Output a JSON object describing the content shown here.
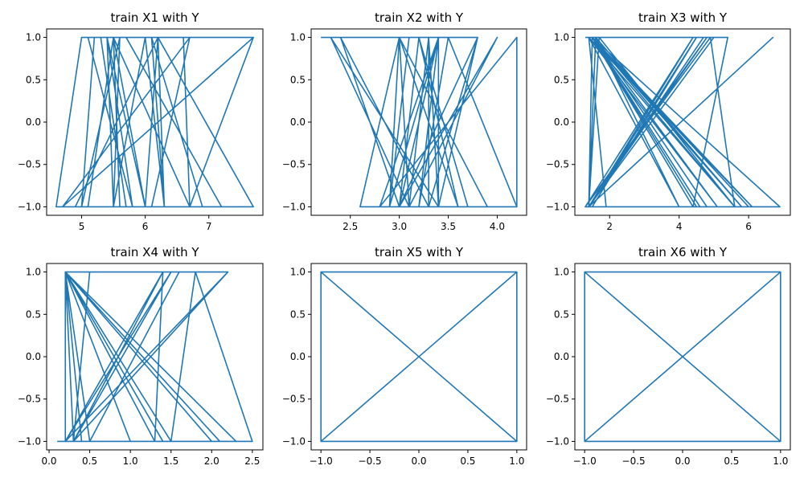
{
  "figure": {
    "background": "#ffffff",
    "line_color": "#1f77b4"
  },
  "chart_data": [
    {
      "type": "line",
      "title": "train X1 with Y",
      "xlim": [
        4.45,
        7.85
      ],
      "ylim": [
        -1.1,
        1.1
      ],
      "xticks": [
        5,
        6,
        7
      ],
      "yticks": [
        1.0,
        0.5,
        0.0,
        -0.5,
        -1.0
      ],
      "xtick_labels": [
        "5",
        "6",
        "7"
      ],
      "ytick_labels": [
        "1.0",
        "0.5",
        "0.0",
        "−0.5",
        "−1.0"
      ],
      "series": [
        {
          "x": [
            4.6,
            5.0,
            5.2,
            5.4,
            5.5,
            5.6,
            5.5,
            6.1,
            6.3,
            6.7,
            5.5,
            5.0,
            4.6,
            5.7,
            5.3,
            5.1,
            5.8,
            5.4,
            6.0,
            5.9,
            6.2,
            6.4,
            6.7,
            6.9,
            6.1,
            5.6,
            5.5,
            6.7,
            7.7,
            5.5,
            5.1,
            5.5,
            6.0,
            6.2,
            4.9,
            5.0,
            5.6,
            5.7,
            7.2,
            6.1,
            6.7,
            4.7,
            7.7,
            5.4,
            5.5,
            6.0,
            6.3,
            6.2,
            7.7,
            6.7,
            6.6
          ],
          "y": [
            -1,
            -1,
            1,
            1,
            -1,
            -1,
            1,
            1,
            -1,
            -1,
            1,
            1,
            -1,
            -1,
            1,
            1,
            -1,
            1,
            -1,
            -1,
            -1,
            -1,
            -1,
            -1,
            1,
            1,
            -1,
            -1,
            1,
            1,
            -1,
            1,
            -1,
            1,
            -1,
            -1,
            1,
            1,
            -1,
            -1,
            1,
            -1,
            1,
            1,
            -1,
            1,
            -1,
            1,
            -1,
            -1,
            1
          ]
        }
      ]
    },
    {
      "type": "line",
      "title": "train X2 with Y",
      "xlim": [
        2.1,
        4.3
      ],
      "ylim": [
        -1.1,
        1.1
      ],
      "xticks": [
        2.5,
        3.0,
        3.5,
        4.0
      ],
      "yticks": [
        1.0,
        0.5,
        0.0,
        -0.5,
        -1.0
      ],
      "xtick_labels": [
        "2.5",
        "3.0",
        "3.5",
        "4.0"
      ],
      "ytick_labels": [
        "1.0",
        "0.5",
        "0.0",
        "−0.5",
        "−1.0"
      ],
      "series": [
        {
          "x": [
            2.2,
            3.1,
            3.1,
            2.9,
            2.6,
            3.0,
            3.8,
            3.4,
            3.0,
            3.2,
            3.4,
            2.8,
            4.2,
            4.2,
            3.4,
            3.2,
            3.4,
            3.0,
            3.3,
            3.3,
            3.4,
            3.0,
            2.4,
            3.3,
            3.8,
            3.0,
            3.2,
            3.5,
            4.2,
            3.4,
            3.4,
            2.9,
            3.9,
            3.0,
            3.1,
            2.3,
            3.4,
            3.1,
            4.0,
            3.0,
            3.7,
            3.2,
            3.6,
            3.0,
            2.9,
            3.4,
            3.3,
            3.1,
            3.0,
            3.4
          ],
          "y": [
            1,
            1,
            1,
            -1,
            -1,
            1,
            1,
            -1,
            -1,
            1,
            1,
            -1,
            1,
            -1,
            -1,
            -1,
            1,
            -1,
            -1,
            1,
            1,
            -1,
            1,
            -1,
            1,
            -1,
            -1,
            1,
            -1,
            -1,
            1,
            -1,
            -1,
            1,
            -1,
            1,
            -1,
            -1,
            1,
            -1,
            -1,
            1,
            -1,
            1,
            -1,
            -1,
            1,
            -1,
            -1,
            -1
          ]
        }
      ]
    },
    {
      "type": "line",
      "title": "train X3 with Y",
      "xlim": [
        1.0,
        7.2
      ],
      "ylim": [
        -1.1,
        1.1
      ],
      "xticks": [
        2,
        4,
        6
      ],
      "yticks": [
        1.0,
        0.5,
        0.0,
        -0.5,
        -1.0
      ],
      "xtick_labels": [
        "2",
        "4",
        "6"
      ],
      "ytick_labels": [
        "1.0",
        "0.5",
        "0.0",
        "−0.5",
        "−1.0"
      ],
      "series": [
        {
          "x": [
            1.3,
            1.5,
            1.4,
            1.4,
            6.1,
            1.5,
            1.4,
            4.5,
            1.5,
            5.6,
            1.4,
            1.6,
            1.4,
            6.9,
            1.5,
            4.7,
            1.4,
            4.8,
            1.3,
            4.9,
            5.6,
            1.7,
            1.4,
            6.0,
            1.5,
            4.5,
            1.4,
            6.7,
            1.4,
            5.0,
            1.5,
            4.6,
            5.6,
            1.5,
            1.4,
            4.4,
            1.3,
            4.8,
            1.5,
            5.8,
            1.6,
            4.0,
            1.4,
            5.4,
            4.4,
            1.5,
            5.1,
            1.4,
            1.9,
            5.2
          ],
          "y": [
            1,
            1,
            1,
            1,
            -1,
            1,
            -1,
            1,
            -1,
            -1,
            1,
            1,
            -1,
            -1,
            1,
            1,
            -1,
            1,
            -1,
            1,
            -1,
            1,
            -1,
            -1,
            1,
            -1,
            -1,
            1,
            -1,
            1,
            1,
            -1,
            -1,
            1,
            -1,
            1,
            -1,
            -1,
            1,
            -1,
            1,
            -1,
            1,
            1,
            -1,
            1,
            -1,
            1,
            -1,
            -1
          ]
        }
      ]
    },
    {
      "type": "line",
      "title": "train X4 with Y",
      "xlim": [
        -0.03,
        2.63
      ],
      "ylim": [
        -1.1,
        1.1
      ],
      "xticks": [
        0.0,
        0.5,
        1.0,
        1.5,
        2.0,
        2.5
      ],
      "yticks": [
        1.0,
        0.5,
        0.0,
        -0.5,
        -1.0
      ],
      "xtick_labels": [
        "0.0",
        "0.5",
        "1.0",
        "1.5",
        "2.0",
        "2.5"
      ],
      "ytick_labels": [
        "1.0",
        "0.5",
        "0.0",
        "−0.5",
        "−1.0"
      ],
      "series": [
        {
          "x": [
            0.1,
            2.3,
            0.2,
            1.3,
            1.4,
            0.3,
            0.5,
            0.3,
            1.5,
            0.2,
            1.4,
            0.3,
            1.4,
            0.2,
            0.2,
            1.5,
            1.8,
            2.5,
            0.2,
            1.4,
            1.3,
            0.2,
            0.4,
            0.2,
            1.5,
            1.4,
            0.2,
            1.0,
            0.2,
            0.2,
            2.2,
            0.2,
            0.3,
            0.2,
            1.5,
            0.2,
            2.1,
            0.2,
            1.6,
            0.5,
            0.2,
            2.0,
            0.2,
            1.3,
            0.2,
            1.5,
            0.2,
            2.2,
            0.3,
            0.2
          ],
          "y": [
            -1,
            -1,
            1,
            -1,
            1,
            1,
            1,
            -1,
            1,
            -1,
            1,
            -1,
            -1,
            1,
            1,
            -1,
            1,
            -1,
            -1,
            1,
            1,
            1,
            -1,
            1,
            -1,
            -1,
            1,
            -1,
            1,
            -1,
            1,
            -1,
            -1,
            1,
            -1,
            1,
            -1,
            1,
            1,
            -1,
            1,
            -1,
            1,
            -1,
            1,
            -1,
            1,
            1,
            -1,
            -1
          ]
        }
      ]
    },
    {
      "type": "line",
      "title": "train X5 with Y",
      "xlim": [
        -1.1,
        1.1
      ],
      "ylim": [
        -1.1,
        1.1
      ],
      "xticks": [
        -1.0,
        -0.5,
        0.0,
        0.5,
        1.0
      ],
      "yticks": [
        1.0,
        0.5,
        0.0,
        -0.5,
        -1.0
      ],
      "xtick_labels": [
        "−1.0",
        "−0.5",
        "0.0",
        "0.5",
        "1.0"
      ],
      "ytick_labels": [
        "1.0",
        "0.5",
        "0.0",
        "−0.5",
        "−1.0"
      ],
      "series": [
        {
          "x": [
            -1,
            -1,
            1,
            1,
            -1,
            1,
            -1,
            -1,
            1,
            1,
            -1,
            1,
            -1,
            1,
            1,
            -1,
            -1,
            1,
            1,
            -1,
            -1,
            1,
            -1,
            1,
            1,
            -1,
            -1,
            1,
            -1,
            -1,
            1,
            1,
            -1,
            1,
            -1,
            -1,
            1,
            1,
            -1,
            -1,
            1,
            -1,
            1,
            1,
            -1,
            1,
            -1,
            -1,
            1,
            -1
          ],
          "y": [
            -1,
            1,
            1,
            -1,
            -1,
            1,
            1,
            -1,
            -1,
            1,
            1,
            -1,
            -1,
            -1,
            1,
            1,
            -1,
            -1,
            1,
            1,
            -1,
            -1,
            1,
            1,
            -1,
            -1,
            1,
            1,
            1,
            -1,
            -1,
            1,
            1,
            -1,
            -1,
            1,
            1,
            -1,
            -1,
            1,
            1,
            -1,
            -1,
            1,
            1,
            -1,
            -1,
            1,
            1,
            -1
          ]
        }
      ]
    },
    {
      "type": "line",
      "title": "train X6 with Y",
      "xlim": [
        -1.1,
        1.1
      ],
      "ylim": [
        -1.1,
        1.1
      ],
      "xticks": [
        -1.0,
        -0.5,
        0.0,
        0.5,
        1.0
      ],
      "yticks": [
        1.0,
        0.5,
        0.0,
        -0.5,
        -1.0
      ],
      "xtick_labels": [
        "−1.0",
        "−0.5",
        "0.0",
        "0.5",
        "1.0"
      ],
      "ytick_labels": [
        "1.0",
        "0.5",
        "0.0",
        "−0.5",
        "−1.0"
      ],
      "series": [
        {
          "x": [
            1,
            1,
            -1,
            -1,
            1,
            -1,
            1,
            1,
            -1,
            -1,
            1,
            -1,
            1,
            -1,
            -1,
            1,
            1,
            -1,
            -1,
            1,
            1,
            -1,
            1,
            -1,
            -1,
            1,
            1,
            -1,
            1,
            1,
            -1,
            -1,
            1,
            -1,
            1,
            1,
            -1,
            -1,
            1,
            1,
            -1,
            1,
            -1,
            -1,
            1,
            -1,
            1,
            1,
            -1,
            1
          ],
          "y": [
            -1,
            1,
            1,
            -1,
            -1,
            1,
            1,
            -1,
            -1,
            1,
            1,
            -1,
            -1,
            -1,
            1,
            1,
            -1,
            -1,
            1,
            1,
            -1,
            -1,
            1,
            1,
            -1,
            -1,
            1,
            1,
            1,
            -1,
            -1,
            1,
            1,
            -1,
            -1,
            1,
            1,
            -1,
            -1,
            1,
            1,
            -1,
            -1,
            1,
            1,
            -1,
            -1,
            1,
            1,
            -1
          ]
        }
      ]
    }
  ]
}
